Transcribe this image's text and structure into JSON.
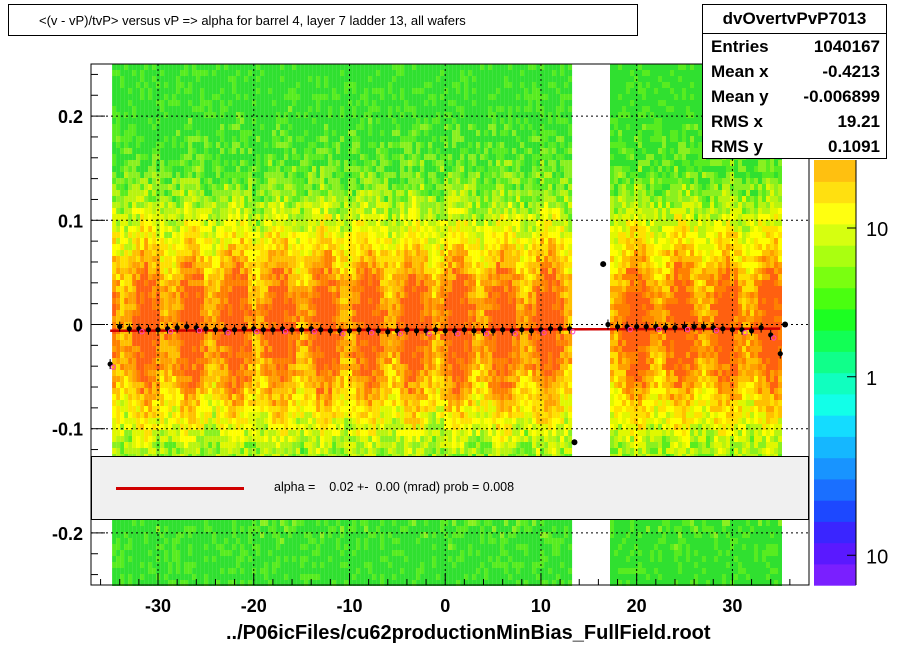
{
  "title": "<(v - vP)/tvP>  versus   vP =>  alpha for barrel 4, layer 7 ladder 13, all wafers",
  "stats": {
    "name": "dvOvertvPvP7013",
    "rows": [
      {
        "label": "Entries",
        "value": "1040167"
      },
      {
        "label": "Mean x",
        "value": "-0.4213"
      },
      {
        "label": "Mean y",
        "value": "-0.006899"
      },
      {
        "label": "RMS x",
        "value": "19.21"
      },
      {
        "label": "RMS y",
        "value": "0.1091"
      }
    ]
  },
  "fit_legend": "alpha =    0.02 +-  0.00 (mrad) prob = 0.008",
  "chart_data": {
    "type": "heatmap",
    "title": "<(v - vP)/tvP>  versus   vP =>  alpha for barrel 4, layer 7 ladder 13, all wafers",
    "xlabel": "../P06icFiles/cu62productionMinBias_FullField.root",
    "ylabel": "",
    "xlim": [
      -37,
      38
    ],
    "ylim": [
      -0.25,
      0.25
    ],
    "x_ticks": [
      -30,
      -20,
      -10,
      0,
      10,
      20,
      30
    ],
    "x_tick_labels": [
      "-30",
      "-20",
      "-10",
      "0",
      "10",
      "20",
      "30"
    ],
    "y_ticks": [
      -0.2,
      -0.1,
      0,
      0.1,
      0.2
    ],
    "y_tick_labels": [
      "-0.2",
      "-0.1",
      "0",
      "0.1",
      "0.2"
    ],
    "grid": true,
    "populated_x_ranges": [
      [
        -35,
        13
      ],
      [
        17,
        35
      ]
    ],
    "empty_x_range": [
      13,
      17
    ],
    "colorbar": {
      "labels": [
        {
          "text": "10",
          "level": 0.84
        },
        {
          "text": "1",
          "level": 0.49
        },
        {
          "text": "10",
          "level": 0.07
        }
      ],
      "colors": [
        "#7a1fff",
        "#5a19ff",
        "#3a25ff",
        "#1d48ff",
        "#1a6fff",
        "#1894ff",
        "#15b7ff",
        "#14dcff",
        "#12ffe8",
        "#10ffbf",
        "#10ff8a",
        "#12ff55",
        "#1cff22",
        "#4aff10",
        "#7aff10",
        "#aaff10",
        "#d6ff10",
        "#ffff10",
        "#ffe010",
        "#ffc010"
      ]
    },
    "profile_points": {
      "x": [
        -35,
        -34,
        -33,
        -32,
        -31,
        -30,
        -29,
        -28,
        -27,
        -26,
        -25,
        -24,
        -23,
        -22,
        -21,
        -20,
        -19,
        -18,
        -17,
        -16,
        -15,
        -14,
        -13,
        -12,
        -11,
        -10,
        -9,
        -8,
        -7,
        -6,
        -5,
        -4,
        -3,
        -2,
        -1,
        0,
        1,
        2,
        3,
        4,
        5,
        6,
        7,
        8,
        9,
        10,
        11,
        12,
        13,
        17,
        18,
        19,
        20,
        21,
        22,
        23,
        24,
        25,
        26,
        27,
        28,
        29,
        30,
        31,
        32,
        33,
        34,
        35
      ],
      "y": [
        -0.038,
        -0.002,
        -0.004,
        -0.004,
        -0.005,
        -0.005,
        -0.004,
        -0.003,
        -0.002,
        -0.003,
        -0.004,
        -0.005,
        -0.005,
        -0.005,
        -0.004,
        -0.004,
        -0.005,
        -0.005,
        -0.004,
        -0.005,
        -0.005,
        -0.004,
        -0.005,
        -0.006,
        -0.006,
        -0.006,
        -0.005,
        -0.005,
        -0.006,
        -0.007,
        -0.006,
        -0.005,
        -0.006,
        -0.006,
        -0.005,
        -0.006,
        -0.006,
        -0.005,
        -0.006,
        -0.006,
        -0.006,
        -0.005,
        -0.006,
        -0.005,
        -0.006,
        -0.005,
        -0.004,
        -0.004,
        -0.004,
        0.0,
        -0.002,
        -0.002,
        -0.002,
        -0.002,
        -0.002,
        -0.003,
        -0.003,
        -0.002,
        -0.002,
        -0.002,
        -0.003,
        -0.004,
        -0.005,
        -0.005,
        -0.006,
        -0.003,
        -0.01,
        -0.028
      ]
    },
    "outlier_points": [
      {
        "x": 16.5,
        "y": 0.058
      },
      {
        "x": 13.5,
        "y": -0.113
      },
      {
        "x": 35.5,
        "y": 0.0
      }
    ],
    "fit_line": {
      "slope_mrad": 0.02,
      "y_at_xmin": -0.006,
      "y_at_xmax": -0.004
    }
  }
}
